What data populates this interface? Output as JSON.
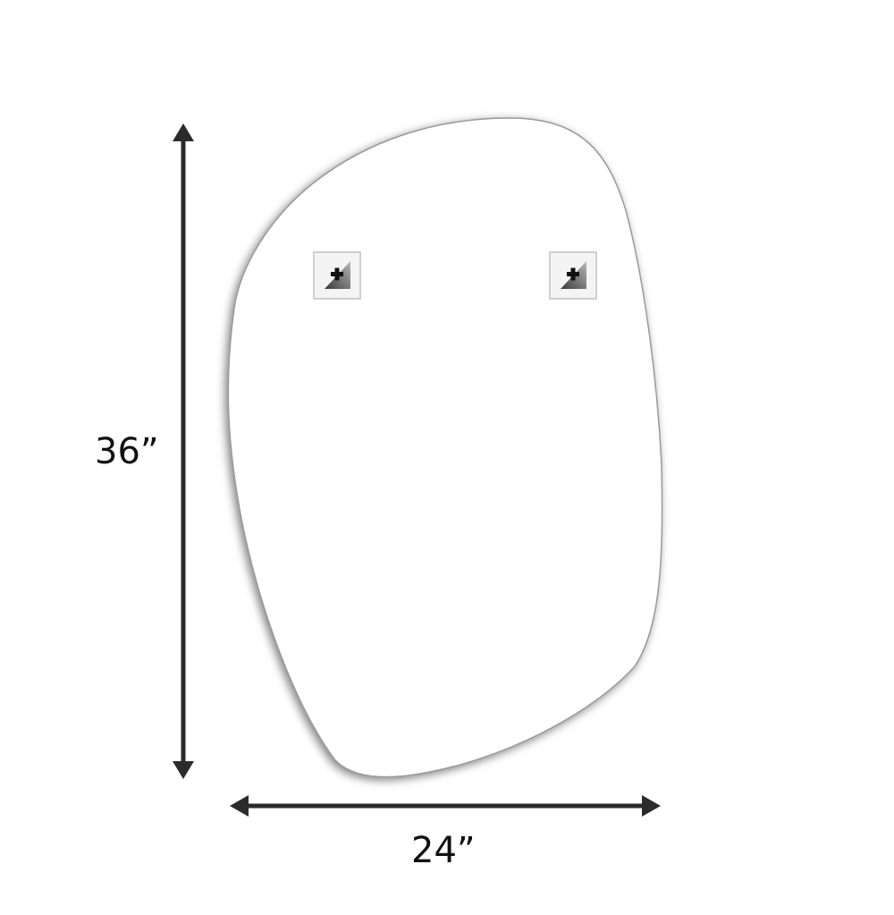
{
  "dimensions": {
    "height_label": "36”",
    "width_label": "24”"
  },
  "mirror": {
    "shape": "asymmetric pebble",
    "fill_color": "#ffffff",
    "edge_color": "#9a9a9a",
    "shadow_color": "#6e6e6e"
  },
  "hangers": {
    "count": 2,
    "icon": "plus-icon"
  },
  "colors": {
    "arrow": "#2b2b2b",
    "text": "#111111"
  }
}
